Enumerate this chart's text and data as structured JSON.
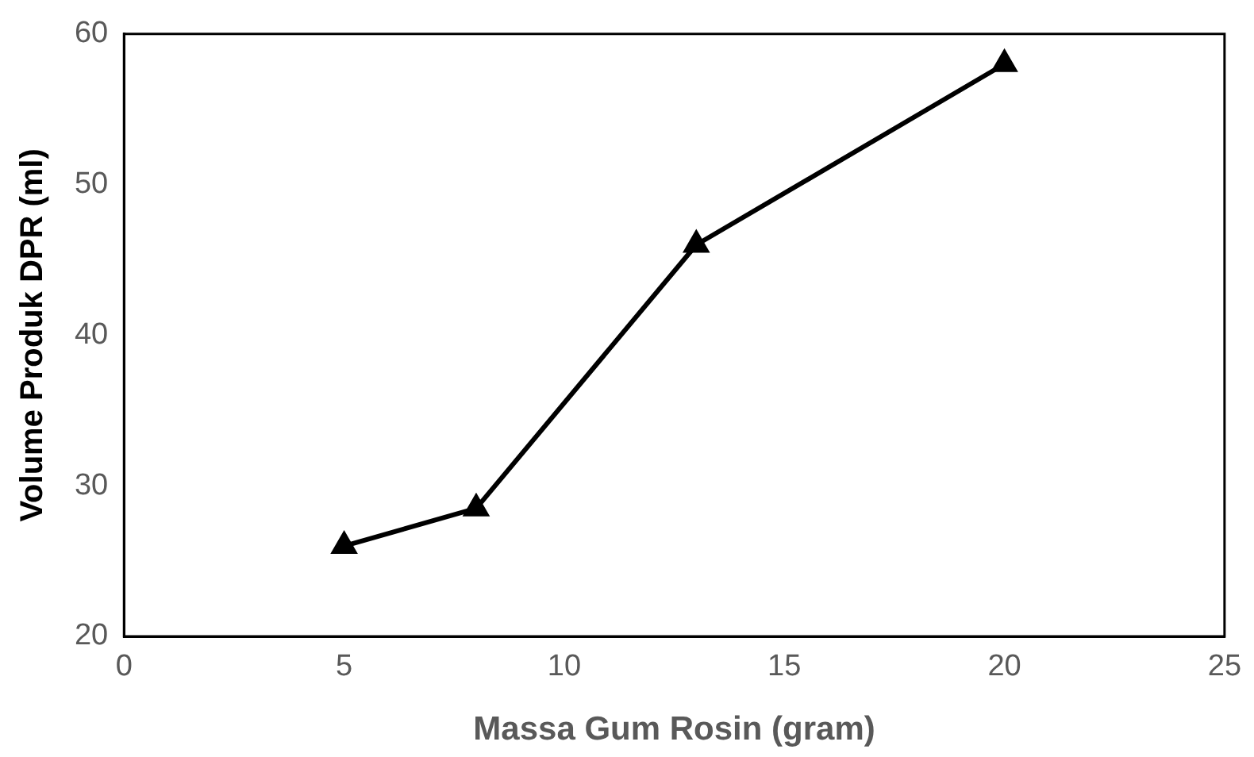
{
  "chart_data": {
    "type": "line",
    "xlabel": "Massa Gum Rosin (gram)",
    "ylabel": "Volume Produk DPR (ml)",
    "x": [
      5,
      8,
      13,
      20
    ],
    "series": [
      {
        "color": "#000000",
        "values": [
          26,
          28.5,
          46,
          58
        ]
      }
    ],
    "xlim": [
      0,
      25
    ],
    "xticks": [
      0,
      5,
      10,
      15,
      20,
      25
    ],
    "ylim": [
      20,
      60
    ],
    "yticks": [
      20,
      30,
      40,
      50,
      60
    ],
    "grid": false,
    "legend": false,
    "marker": "triangle",
    "line_style": "solid"
  }
}
